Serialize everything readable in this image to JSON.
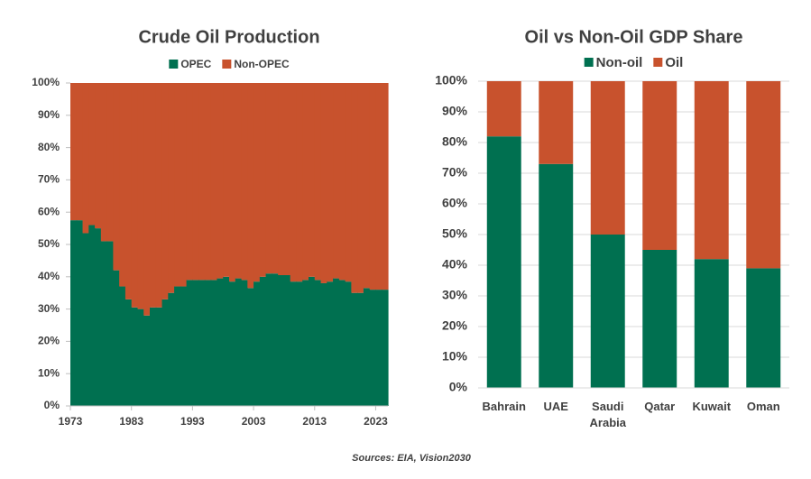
{
  "chart_data": [
    {
      "type": "stacked_area",
      "title": "Crude Oil Production",
      "x": [
        1973,
        1974,
        1975,
        1976,
        1977,
        1978,
        1979,
        1980,
        1981,
        1982,
        1983,
        1984,
        1985,
        1986,
        1987,
        1988,
        1989,
        1990,
        1991,
        1992,
        1993,
        1994,
        1995,
        1996,
        1997,
        1998,
        1999,
        2000,
        2001,
        2002,
        2003,
        2004,
        2005,
        2006,
        2007,
        2008,
        2009,
        2010,
        2011,
        2012,
        2013,
        2014,
        2015,
        2016,
        2017,
        2018,
        2019,
        2020,
        2021,
        2022,
        2023,
        2024
      ],
      "series": [
        {
          "name": "OPEC",
          "color": "#007050",
          "values": [
            57.5,
            57.5,
            53.5,
            56,
            55,
            51,
            51,
            42,
            37,
            33,
            30.5,
            30,
            28,
            30.5,
            30.5,
            33,
            35,
            37,
            37,
            39,
            39,
            39,
            39,
            39,
            39.5,
            40,
            38.5,
            39.5,
            39,
            36.5,
            38.5,
            40,
            41,
            41,
            40.5,
            40.5,
            38.5,
            38.5,
            39,
            40,
            39,
            38,
            38.5,
            39.5,
            39,
            38.5,
            35,
            35,
            36.5,
            36,
            36,
            36
          ]
        },
        {
          "name": "Non-OPEC",
          "color": "#C8522D",
          "values": [
            42.5,
            42.5,
            46.5,
            44,
            45,
            49,
            49,
            58,
            63,
            67,
            69.5,
            70,
            72,
            69.5,
            69.5,
            67,
            65,
            63,
            63,
            61,
            61,
            61,
            61,
            61,
            60.5,
            60,
            61.5,
            60.5,
            61,
            63.5,
            61.5,
            60,
            59,
            59,
            59.5,
            59.5,
            61.5,
            61.5,
            61,
            60,
            61,
            62,
            61.5,
            60.5,
            61,
            61.5,
            65,
            65,
            63.5,
            64,
            64,
            64
          ]
        }
      ],
      "xlim": [
        1973,
        2025
      ],
      "xticks": [
        1973,
        1983,
        1993,
        2003,
        2013,
        2023
      ],
      "ylim": [
        0,
        100
      ],
      "yticks": [
        {
          "value": 0,
          "label": "0%"
        },
        {
          "value": 10,
          "label": "10%"
        },
        {
          "value": 20,
          "label": "20%"
        },
        {
          "value": 30,
          "label": "30%"
        },
        {
          "value": 40,
          "label": "40%"
        },
        {
          "value": 50,
          "label": "50%"
        },
        {
          "value": 60,
          "label": "60%"
        },
        {
          "value": 70,
          "label": "70%"
        },
        {
          "value": 80,
          "label": "80%"
        },
        {
          "value": 90,
          "label": "90%"
        },
        {
          "value": 100,
          "label": "100%"
        }
      ],
      "grid": false
    },
    {
      "type": "stacked_bar",
      "title": "Oil vs Non-Oil GDP Share",
      "categories": [
        "Bahrain",
        "UAE",
        "Saudi Arabia",
        "Qatar",
        "Kuwait",
        "Oman"
      ],
      "series": [
        {
          "name": "Non-oil",
          "color": "#007050",
          "values": [
            82,
            73,
            50,
            45,
            42,
            39
          ]
        },
        {
          "name": "Oil",
          "color": "#C8522D",
          "values": [
            18,
            27,
            50,
            55,
            58,
            61
          ]
        }
      ],
      "ylim": [
        0,
        100
      ],
      "yticks": [
        {
          "value": 0,
          "label": "0%"
        },
        {
          "value": 10,
          "label": "10%"
        },
        {
          "value": 20,
          "label": "20%"
        },
        {
          "value": 30,
          "label": "30%"
        },
        {
          "value": 40,
          "label": "40%"
        },
        {
          "value": 50,
          "label": "50%"
        },
        {
          "value": 60,
          "label": "60%"
        },
        {
          "value": 70,
          "label": "70%"
        },
        {
          "value": 80,
          "label": "80%"
        },
        {
          "value": 90,
          "label": "90%"
        },
        {
          "value": 100,
          "label": "100%"
        }
      ],
      "grid": true
    }
  ],
  "source": "Sources: EIA, Vision2030"
}
